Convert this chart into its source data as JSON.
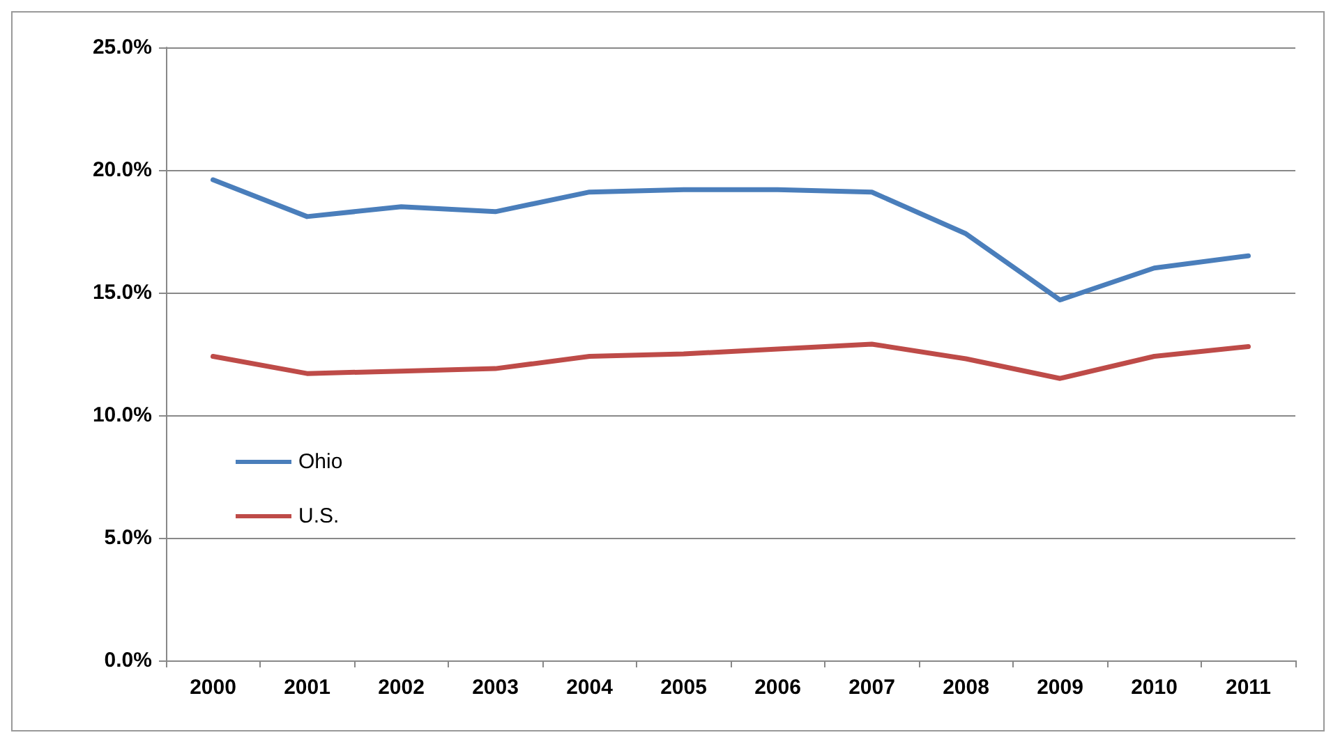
{
  "chart_data": {
    "type": "line",
    "categories": [
      "2000",
      "2001",
      "2002",
      "2003",
      "2004",
      "2005",
      "2006",
      "2007",
      "2008",
      "2009",
      "2010",
      "2011"
    ],
    "series": [
      {
        "name": "Ohio",
        "color": "#4a7ebb",
        "values": [
          19.6,
          18.1,
          18.5,
          18.3,
          19.1,
          19.2,
          19.2,
          19.1,
          17.4,
          14.7,
          16.0,
          16.5
        ]
      },
      {
        "name": "U.S.",
        "color": "#be4b48",
        "values": [
          12.4,
          11.7,
          11.8,
          11.9,
          12.4,
          12.5,
          12.7,
          12.9,
          12.3,
          11.5,
          12.4,
          12.8
        ]
      }
    ],
    "ylim": [
      0,
      25
    ],
    "yticks": [
      {
        "value": 0,
        "label": "0.0%"
      },
      {
        "value": 5,
        "label": "5.0%"
      },
      {
        "value": 10,
        "label": "10.0%"
      },
      {
        "value": 15,
        "label": "15.0%"
      },
      {
        "value": 20,
        "label": "20.0%"
      },
      {
        "value": 25,
        "label": "25.0%"
      }
    ],
    "grid": "y",
    "legend": "left",
    "marker": "none",
    "line_style": "solid"
  }
}
